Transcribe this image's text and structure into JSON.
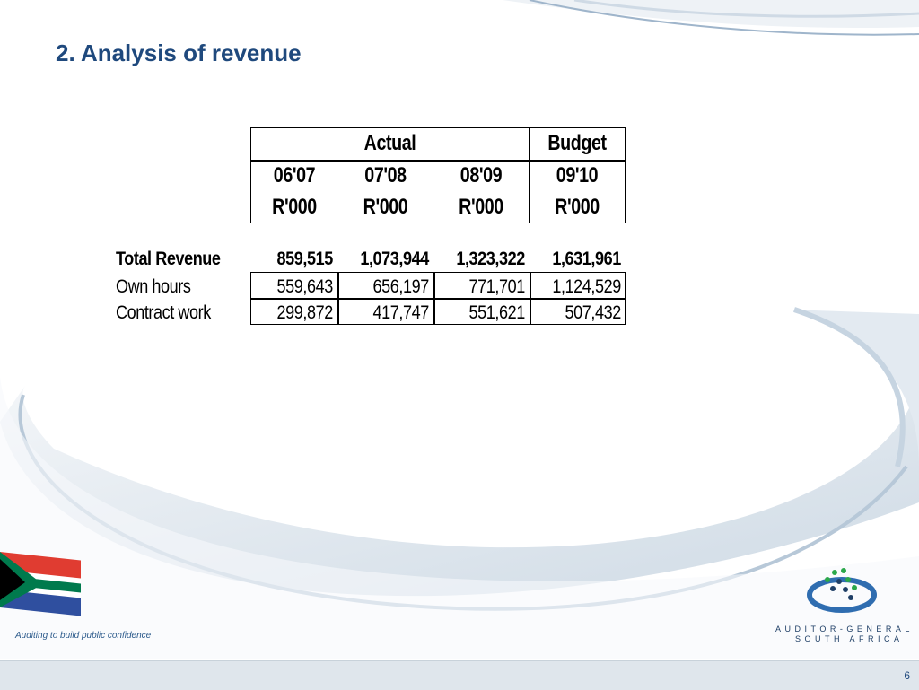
{
  "slide": {
    "title": "2. Analysis of revenue",
    "page_number": "6",
    "tagline": "Auditing to build public confidence"
  },
  "logo": {
    "line1": "AUDITOR-GENERAL",
    "line2": "SOUTH AFRICA"
  },
  "table": {
    "group_actual": "Actual",
    "group_budget": "Budget",
    "columns": [
      {
        "year": "06'07",
        "unit": "R'000"
      },
      {
        "year": "07'08",
        "unit": "R'000"
      },
      {
        "year": "08'09",
        "unit": "R'000"
      },
      {
        "year": "09'10",
        "unit": "R'000"
      }
    ],
    "rows": [
      {
        "label": "Total Revenue",
        "values": [
          "859,515",
          "1,073,944",
          "1,323,322",
          "1,631,961"
        ]
      },
      {
        "label": "Own hours",
        "values": [
          "559,643",
          "656,197",
          "771,701",
          "1,124,529"
        ]
      },
      {
        "label": "Contract work",
        "values": [
          "299,872",
          "417,747",
          "551,621",
          "507,432"
        ]
      }
    ]
  },
  "colors": {
    "title": "#1f497d",
    "swoosh": "#c5d3e0",
    "footer": "#dfe6ec"
  }
}
